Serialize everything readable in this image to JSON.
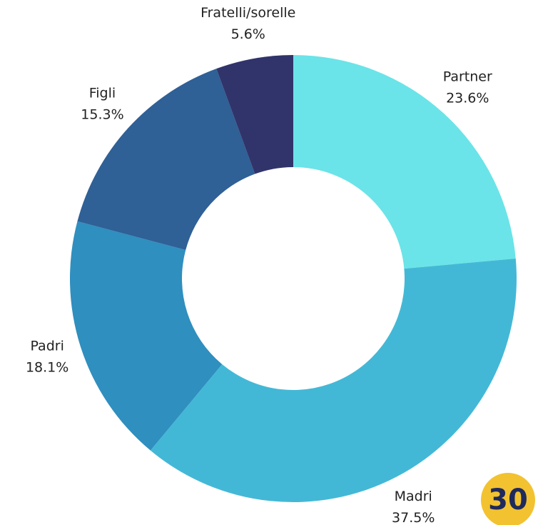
{
  "chart_data": {
    "type": "donut",
    "categories": [
      "Partner",
      "Madri",
      "Padri",
      "Figli",
      "Fratelli/sorelle"
    ],
    "values": [
      23.6,
      37.5,
      18.1,
      15.3,
      5.6
    ],
    "value_labels": [
      "23.6%",
      "37.5%",
      "18.1%",
      "15.3%",
      "5.6%"
    ],
    "colors": [
      "#6ae4e8",
      "#43b8d6",
      "#2f8fbf",
      "#2f6096",
      "#31346a"
    ]
  },
  "badge": "30"
}
